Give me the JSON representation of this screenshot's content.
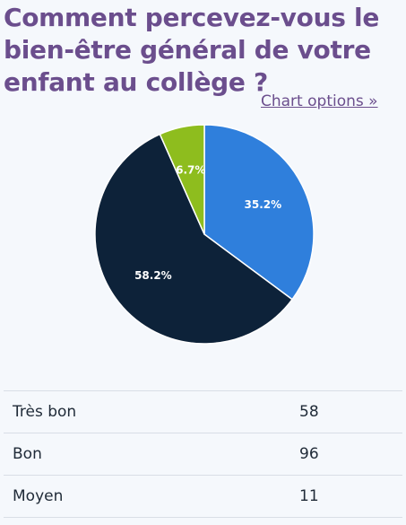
{
  "title": "Comment percevez-vous le bien-être général de votre enfant au collège ?",
  "chart_options_label": "Chart options »",
  "chart_data": {
    "type": "pie",
    "categories": [
      "Très bon",
      "Bon",
      "Moyen"
    ],
    "values": [
      58,
      96,
      11
    ],
    "percent_labels": [
      "35.2%",
      "58.2%",
      "6.7%"
    ],
    "colors": [
      "#2f7fdc",
      "#0d2239",
      "#8ebd1e"
    ]
  },
  "table": {
    "rows": [
      {
        "label": "Très bon",
        "value": "58"
      },
      {
        "label": "Bon",
        "value": "96"
      },
      {
        "label": "Moyen",
        "value": "11"
      }
    ]
  }
}
